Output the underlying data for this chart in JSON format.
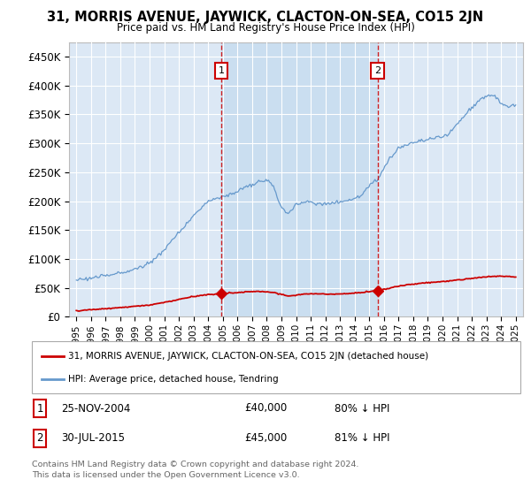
{
  "title": "31, MORRIS AVENUE, JAYWICK, CLACTON-ON-SEA, CO15 2JN",
  "subtitle": "Price paid vs. HM Land Registry's House Price Index (HPI)",
  "hpi_color": "#6699cc",
  "price_color": "#cc0000",
  "annotation_color": "#cc0000",
  "background_color": "#ffffff",
  "plot_bg_color": "#dce8f5",
  "shade_color": "#c8ddf0",
  "grid_color": "#ffffff",
  "sale1_x": 2004.9,
  "sale1_price": 40000,
  "sale2_x": 2015.58,
  "sale2_price": 45000,
  "legend_entry1": "31, MORRIS AVENUE, JAYWICK, CLACTON-ON-SEA, CO15 2JN (detached house)",
  "legend_entry2": "HPI: Average price, detached house, Tendring",
  "table_row1": [
    "1",
    "25-NOV-2004",
    "£40,000",
    "80% ↓ HPI"
  ],
  "table_row2": [
    "2",
    "30-JUL-2015",
    "£45,000",
    "81% ↓ HPI"
  ],
  "footnote1": "Contains HM Land Registry data © Crown copyright and database right 2024.",
  "footnote2": "This data is licensed under the Open Government Licence v3.0.",
  "ylim_max": 475000,
  "xlim_start": 1994.5,
  "xlim_end": 2025.5
}
